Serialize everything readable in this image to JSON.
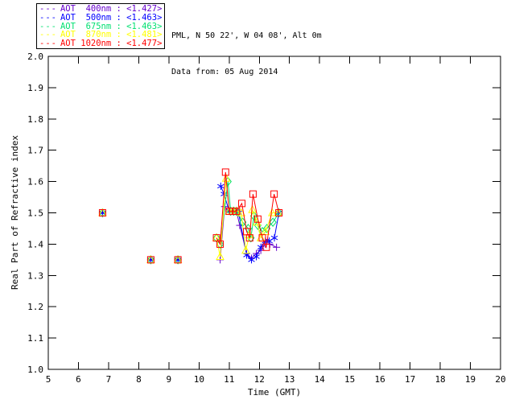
{
  "header": {
    "line1": "PML, N 50 22', W 04 08', Alt 0m",
    "line2": "Data from: 05 Aug 2014"
  },
  "legend": {
    "line_sample": "---",
    "entries": [
      {
        "label": "AOT  400nm : <1.427>",
        "color": "#6600CC"
      },
      {
        "label": "AOT  500nm : <1.463>",
        "color": "#0000FF"
      },
      {
        "label": "AOT  675nm : <1.463>",
        "color": "#00E070"
      },
      {
        "label": "AOT  870nm : <1.481>",
        "color": "#FFFF00"
      },
      {
        "label": "AOT 1020nm : <1.477>",
        "color": "#FF0000"
      }
    ]
  },
  "chart_data": {
    "type": "line",
    "title": "",
    "xlabel": "Time (GMT)",
    "ylabel": "Real Part of Refractive index",
    "xlim": [
      5,
      20
    ],
    "ylim": [
      1.0,
      2.0
    ],
    "xticks": [
      "5",
      "6",
      "7",
      "8",
      "9",
      "10",
      "11",
      "12",
      "13",
      "14",
      "15",
      "16",
      "17",
      "18",
      "19",
      "20"
    ],
    "yticks": [
      "1.0",
      "1.1",
      "1.2",
      "1.3",
      "1.4",
      "1.5",
      "1.6",
      "1.7",
      "1.8",
      "1.9",
      "2.0"
    ],
    "grid": false,
    "legend_position": "top-left-outside",
    "series": [
      {
        "name": "AOT 400nm",
        "mean": "<1.427>",
        "color": "#6600CC",
        "marker": "plus",
        "isolated_points": [
          [
            6.8,
            1.5
          ],
          [
            8.4,
            1.35
          ],
          [
            9.3,
            1.35
          ]
        ],
        "points": [
          [
            10.7,
            1.35
          ],
          [
            10.85,
            1.52
          ],
          [
            11.0,
            1.505
          ],
          [
            11.12,
            1.505
          ],
          [
            11.24,
            1.505
          ],
          [
            11.35,
            1.46
          ],
          [
            11.58,
            1.37
          ],
          [
            11.74,
            1.355
          ],
          [
            11.9,
            1.37
          ],
          [
            12.05,
            1.38
          ],
          [
            12.2,
            1.4
          ],
          [
            12.35,
            1.4
          ],
          [
            12.57,
            1.39
          ]
        ]
      },
      {
        "name": "AOT 500nm",
        "mean": "<1.463>",
        "color": "#0000FF",
        "marker": "asterisk",
        "isolated_points": [
          [
            6.8,
            1.5
          ],
          [
            8.4,
            1.35
          ],
          [
            9.3,
            1.35
          ]
        ],
        "points": [
          [
            10.72,
            1.585
          ],
          [
            10.83,
            1.56
          ],
          [
            11.0,
            1.505
          ],
          [
            11.12,
            1.505
          ],
          [
            11.24,
            1.505
          ],
          [
            11.31,
            1.5
          ],
          [
            11.58,
            1.365
          ],
          [
            11.74,
            1.35
          ],
          [
            11.9,
            1.36
          ],
          [
            12.05,
            1.39
          ],
          [
            12.2,
            1.41
          ],
          [
            12.33,
            1.41
          ],
          [
            12.5,
            1.42
          ],
          [
            12.65,
            1.5
          ]
        ]
      },
      {
        "name": "AOT 675nm",
        "mean": "<1.463>",
        "color": "#00E070",
        "marker": "diamond",
        "isolated_points": [
          [
            6.8,
            1.5
          ],
          [
            8.4,
            1.35
          ],
          [
            9.3,
            1.35
          ]
        ],
        "points": [
          [
            10.58,
            1.42
          ],
          [
            10.7,
            1.4
          ],
          [
            10.96,
            1.6
          ],
          [
            11.05,
            1.505
          ],
          [
            11.15,
            1.505
          ],
          [
            11.25,
            1.505
          ],
          [
            11.45,
            1.47
          ],
          [
            11.63,
            1.45
          ],
          [
            11.72,
            1.42
          ],
          [
            11.82,
            1.49
          ],
          [
            11.95,
            1.46
          ],
          [
            12.1,
            1.44
          ],
          [
            12.25,
            1.45
          ],
          [
            12.45,
            1.47
          ],
          [
            12.65,
            1.5
          ]
        ]
      },
      {
        "name": "AOT 870nm",
        "mean": "<1.481>",
        "color": "#FFFF00",
        "marker": "triangle",
        "isolated_points": [
          [
            6.8,
            1.5
          ],
          [
            8.4,
            1.35
          ],
          [
            9.3,
            1.35
          ]
        ],
        "points": [
          [
            10.58,
            1.42
          ],
          [
            10.7,
            1.36
          ],
          [
            10.9,
            1.61
          ],
          [
            11.0,
            1.505
          ],
          [
            11.12,
            1.505
          ],
          [
            11.24,
            1.505
          ],
          [
            11.4,
            1.5
          ],
          [
            11.55,
            1.38
          ],
          [
            11.67,
            1.43
          ],
          [
            11.77,
            1.51
          ],
          [
            11.92,
            1.47
          ],
          [
            12.05,
            1.42
          ],
          [
            12.2,
            1.44
          ],
          [
            12.43,
            1.5
          ],
          [
            12.62,
            1.5
          ]
        ]
      },
      {
        "name": "AOT 1020nm",
        "mean": "<1.477>",
        "color": "#FF0000",
        "marker": "square",
        "isolated_points": [
          [
            6.8,
            1.5
          ],
          [
            8.4,
            1.35
          ],
          [
            9.3,
            1.35
          ]
        ],
        "points": [
          [
            10.58,
            1.42
          ],
          [
            10.7,
            1.4
          ],
          [
            10.88,
            1.63
          ],
          [
            11.0,
            1.505
          ],
          [
            11.12,
            1.505
          ],
          [
            11.24,
            1.505
          ],
          [
            11.42,
            1.53
          ],
          [
            11.58,
            1.44
          ],
          [
            11.68,
            1.42
          ],
          [
            11.79,
            1.56
          ],
          [
            11.95,
            1.48
          ],
          [
            12.1,
            1.42
          ],
          [
            12.23,
            1.39
          ],
          [
            12.49,
            1.56
          ],
          [
            12.65,
            1.5
          ]
        ]
      }
    ]
  }
}
